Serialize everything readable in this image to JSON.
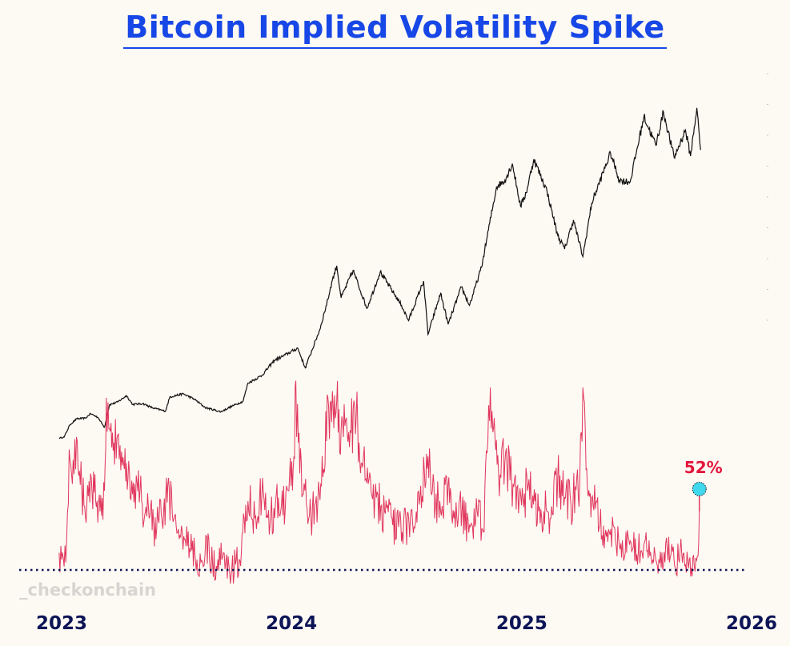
{
  "title": "Bitcoin Implied Volatility Spike",
  "watermark": "_checkonchain",
  "colors": {
    "title": "#1747e6",
    "price_line": "#111111",
    "iv_line": "#e0365d",
    "baseline": "#0d1557",
    "marker_fill": "#3fd8ec",
    "annotation": "#e3163b",
    "axis_text": "#0d1557"
  },
  "chart_data": {
    "type": "line",
    "title": "Bitcoin Implied Volatility Spike",
    "x_ticks": [
      "2023",
      "2024",
      "2025",
      "2026"
    ],
    "xlim": [
      "2023-01-01",
      "2026-01-01"
    ],
    "annotation": {
      "label": "52%",
      "date": "2025-10-10",
      "value": 52
    },
    "baseline_iv": 35,
    "iv_ylim": [
      30,
      92
    ],
    "price_ylim": [
      0,
      130000
    ],
    "grid": false,
    "legend": "none",
    "series": [
      {
        "role": "price",
        "points": [
          [
            "2022-12-28",
            16500
          ],
          [
            "2023-01-05",
            16800
          ],
          [
            "2023-01-14",
            20800
          ],
          [
            "2023-01-25",
            22800
          ],
          [
            "2023-02-08",
            23000
          ],
          [
            "2023-02-16",
            24500
          ],
          [
            "2023-02-28",
            23200
          ],
          [
            "2023-03-10",
            20000
          ],
          [
            "2023-03-18",
            27400
          ],
          [
            "2023-03-31",
            28300
          ],
          [
            "2023-04-14",
            30400
          ],
          [
            "2023-04-24",
            27500
          ],
          [
            "2023-05-10",
            27800
          ],
          [
            "2023-05-25",
            26400
          ],
          [
            "2023-06-15",
            25300
          ],
          [
            "2023-06-22",
            30000
          ],
          [
            "2023-07-13",
            31000
          ],
          [
            "2023-07-31",
            29200
          ],
          [
            "2023-08-17",
            26500
          ],
          [
            "2023-09-11",
            25100
          ],
          [
            "2023-09-29",
            27000
          ],
          [
            "2023-10-16",
            28500
          ],
          [
            "2023-10-24",
            34500
          ],
          [
            "2023-11-15",
            37000
          ],
          [
            "2023-12-05",
            42000
          ],
          [
            "2023-12-20",
            43500
          ],
          [
            "2024-01-11",
            46000
          ],
          [
            "2024-01-23",
            39500
          ],
          [
            "2024-02-15",
            52000
          ],
          [
            "2024-02-28",
            62000
          ],
          [
            "2024-03-05",
            67500
          ],
          [
            "2024-03-13",
            73000
          ],
          [
            "2024-03-20",
            62500
          ],
          [
            "2024-04-08",
            71500
          ],
          [
            "2024-04-30",
            59000
          ],
          [
            "2024-05-21",
            71000
          ],
          [
            "2024-06-24",
            60000
          ],
          [
            "2024-07-05",
            55000
          ],
          [
            "2024-07-29",
            68000
          ],
          [
            "2024-08-05",
            50500
          ],
          [
            "2024-08-25",
            64000
          ],
          [
            "2024-09-06",
            53800
          ],
          [
            "2024-09-27",
            66000
          ],
          [
            "2024-10-10",
            60000
          ],
          [
            "2024-10-29",
            72500
          ],
          [
            "2024-11-11",
            87000
          ],
          [
            "2024-11-22",
            99000
          ],
          [
            "2024-12-05",
            101000
          ],
          [
            "2024-12-17",
            106500
          ],
          [
            "2024-12-30",
            92500
          ],
          [
            "2025-01-08",
            97000
          ],
          [
            "2025-01-20",
            108000
          ],
          [
            "2025-02-10",
            97500
          ],
          [
            "2025-02-27",
            83000
          ],
          [
            "2025-03-10",
            78500
          ],
          [
            "2025-03-24",
            88000
          ],
          [
            "2025-04-08",
            76000
          ],
          [
            "2025-04-22",
            93500
          ],
          [
            "2025-05-10",
            103500
          ],
          [
            "2025-05-22",
            110000
          ],
          [
            "2025-06-05",
            101000
          ],
          [
            "2025-06-22",
            100500
          ],
          [
            "2025-07-14",
            122000
          ],
          [
            "2025-08-02",
            112500
          ],
          [
            "2025-08-14",
            123500
          ],
          [
            "2025-08-31",
            108500
          ],
          [
            "2025-09-18",
            117500
          ],
          [
            "2025-09-26",
            109000
          ],
          [
            "2025-10-06",
            124800
          ],
          [
            "2025-10-12",
            111000
          ]
        ]
      },
      {
        "role": "implied_volatility",
        "points": [
          [
            "2022-12-28",
            40
          ],
          [
            "2023-01-01",
            38
          ],
          [
            "2023-01-05",
            36
          ],
          [
            "2023-01-09",
            44
          ],
          [
            "2023-01-13",
            70
          ],
          [
            "2023-01-18",
            60
          ],
          [
            "2023-01-22",
            73
          ],
          [
            "2023-01-27",
            65
          ],
          [
            "2023-02-02",
            58
          ],
          [
            "2023-02-10",
            54
          ],
          [
            "2023-02-16",
            63
          ],
          [
            "2023-02-24",
            55
          ],
          [
            "2023-03-03",
            52
          ],
          [
            "2023-03-10",
            58
          ],
          [
            "2023-03-13",
            85
          ],
          [
            "2023-03-17",
            76
          ],
          [
            "2023-03-25",
            72
          ],
          [
            "2023-04-05",
            64
          ],
          [
            "2023-04-14",
            66
          ],
          [
            "2023-04-20",
            56
          ],
          [
            "2023-04-27",
            60
          ],
          [
            "2023-05-08",
            55
          ],
          [
            "2023-05-20",
            50
          ],
          [
            "2023-06-01",
            47
          ],
          [
            "2023-06-12",
            52
          ],
          [
            "2023-06-21",
            58
          ],
          [
            "2023-06-27",
            49
          ],
          [
            "2023-07-08",
            45
          ],
          [
            "2023-07-20",
            42
          ],
          [
            "2023-08-04",
            38
          ],
          [
            "2023-08-14",
            36
          ],
          [
            "2023-08-18",
            45
          ],
          [
            "2023-08-24",
            38
          ],
          [
            "2023-09-05",
            35
          ],
          [
            "2023-09-15",
            40
          ],
          [
            "2023-09-25",
            34
          ],
          [
            "2023-10-10",
            38
          ],
          [
            "2023-10-18",
            50
          ],
          [
            "2023-10-24",
            55
          ],
          [
            "2023-11-04",
            50
          ],
          [
            "2023-11-15",
            56
          ],
          [
            "2023-11-28",
            48
          ],
          [
            "2023-12-08",
            57
          ],
          [
            "2023-12-15",
            52
          ],
          [
            "2023-12-28",
            58
          ],
          [
            "2024-01-05",
            68
          ],
          [
            "2024-01-08",
            90
          ],
          [
            "2024-01-12",
            72
          ],
          [
            "2024-01-20",
            57
          ],
          [
            "2024-02-01",
            50
          ],
          [
            "2024-02-12",
            55
          ],
          [
            "2024-02-20",
            62
          ],
          [
            "2024-02-28",
            85
          ],
          [
            "2024-03-05",
            78
          ],
          [
            "2024-03-13",
            84
          ],
          [
            "2024-03-20",
            76
          ],
          [
            "2024-04-01",
            75
          ],
          [
            "2024-04-13",
            80
          ],
          [
            "2024-04-22",
            66
          ],
          [
            "2024-05-02",
            60
          ],
          [
            "2024-05-15",
            56
          ],
          [
            "2024-05-28",
            52
          ],
          [
            "2024-06-10",
            48
          ],
          [
            "2024-06-25",
            46
          ],
          [
            "2024-07-08",
            50
          ],
          [
            "2024-07-22",
            54
          ],
          [
            "2024-08-05",
            68
          ],
          [
            "2024-08-12",
            58
          ],
          [
            "2024-08-25",
            52
          ],
          [
            "2024-09-06",
            60
          ],
          [
            "2024-09-15",
            50
          ],
          [
            "2024-09-28",
            52
          ],
          [
            "2024-10-10",
            48
          ],
          [
            "2024-10-22",
            52
          ],
          [
            "2024-11-01",
            46
          ],
          [
            "2024-11-08",
            72
          ],
          [
            "2024-11-12",
            88
          ],
          [
            "2024-11-16",
            75
          ],
          [
            "2024-11-25",
            64
          ],
          [
            "2024-12-05",
            66
          ],
          [
            "2024-12-18",
            60
          ],
          [
            "2024-12-28",
            56
          ],
          [
            "2025-01-10",
            58
          ],
          [
            "2025-01-22",
            55
          ],
          [
            "2025-02-05",
            52
          ],
          [
            "2025-02-15",
            50
          ],
          [
            "2025-02-27",
            62
          ],
          [
            "2025-03-10",
            56
          ],
          [
            "2025-03-20",
            54
          ],
          [
            "2025-04-03",
            60
          ],
          [
            "2025-04-08",
            88
          ],
          [
            "2025-04-13",
            64
          ],
          [
            "2025-04-22",
            56
          ],
          [
            "2025-05-05",
            48
          ],
          [
            "2025-05-20",
            46
          ],
          [
            "2025-06-05",
            42
          ],
          [
            "2025-06-20",
            44
          ],
          [
            "2025-07-05",
            40
          ],
          [
            "2025-07-15",
            43
          ],
          [
            "2025-07-28",
            38
          ],
          [
            "2025-08-08",
            37
          ],
          [
            "2025-08-20",
            41
          ],
          [
            "2025-09-01",
            36
          ],
          [
            "2025-09-12",
            40
          ],
          [
            "2025-09-24",
            38
          ],
          [
            "2025-10-02",
            36
          ],
          [
            "2025-10-08",
            39
          ],
          [
            "2025-10-10",
            52
          ]
        ]
      }
    ]
  }
}
